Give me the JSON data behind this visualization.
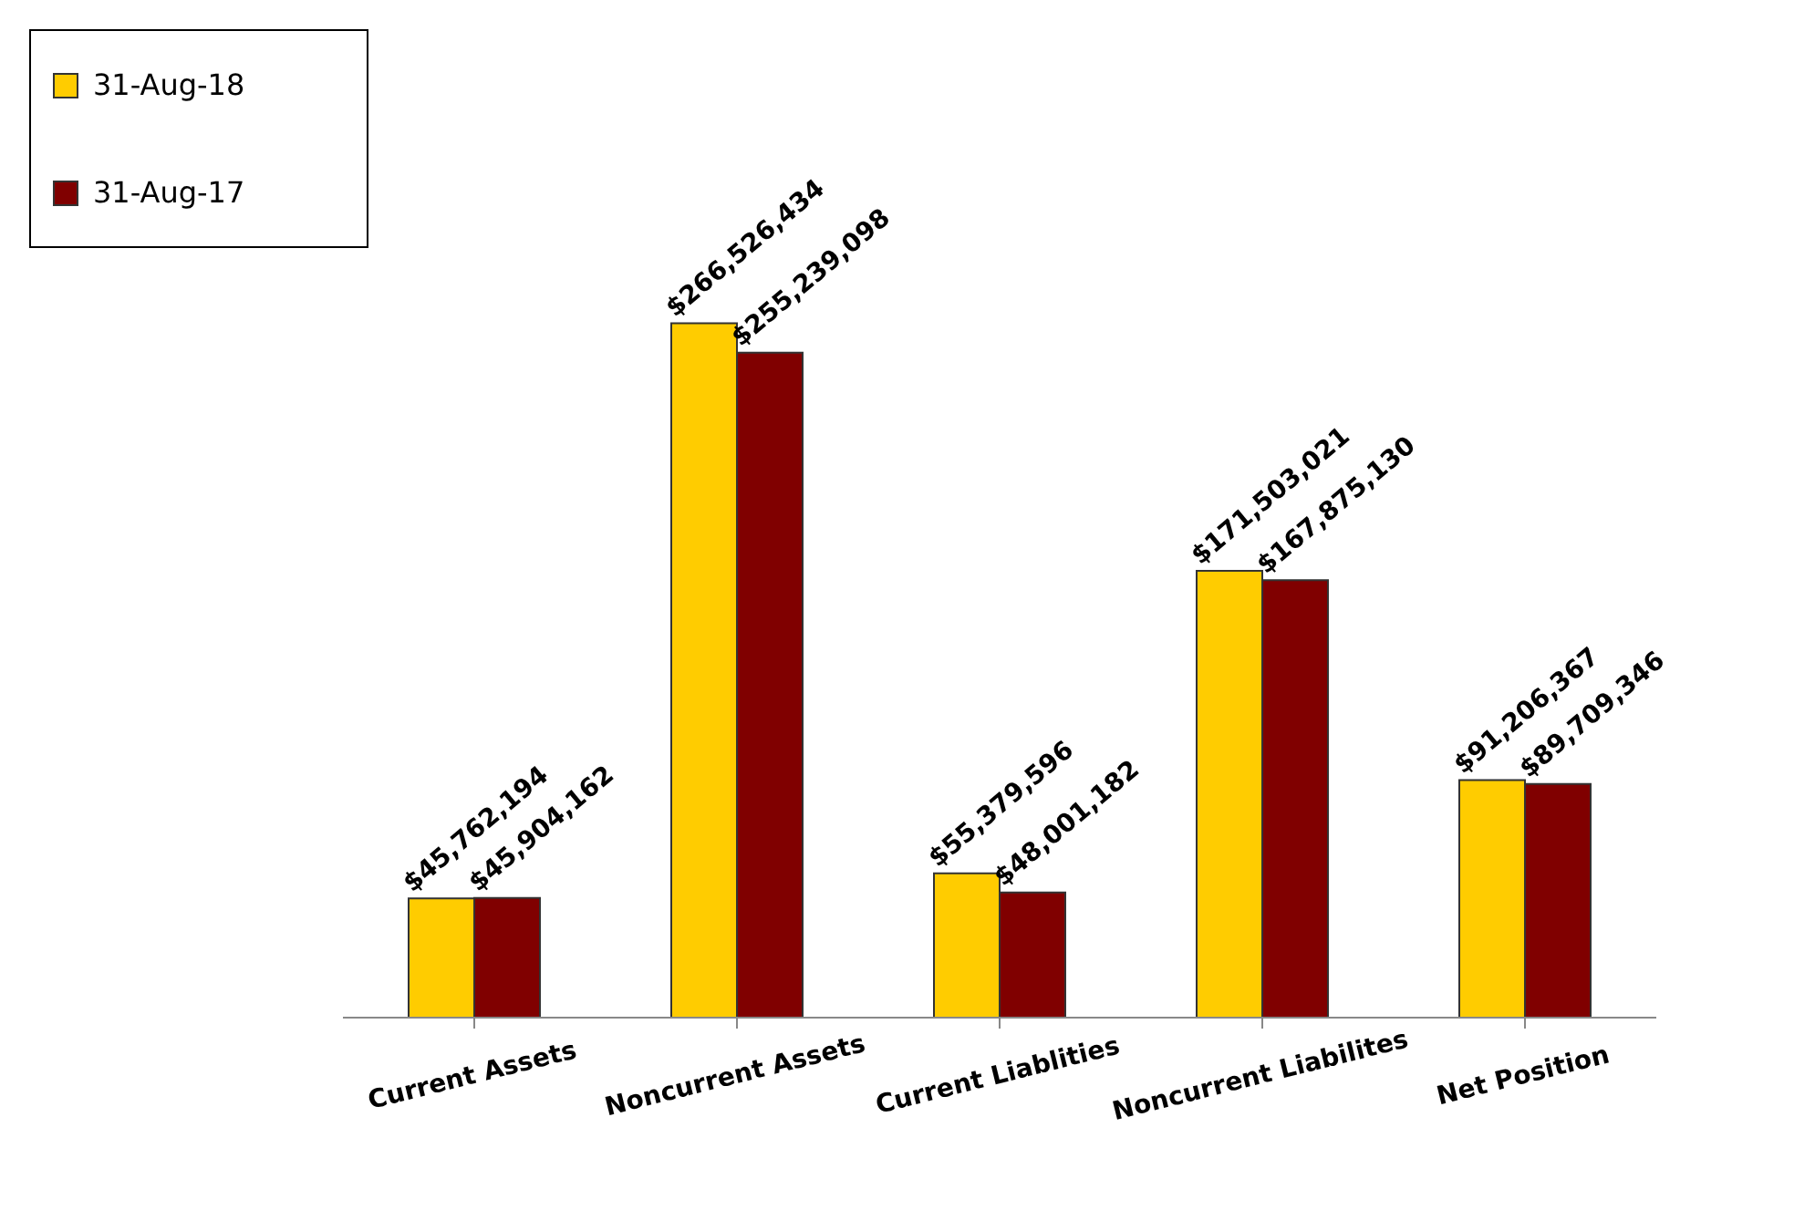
{
  "chart_data": {
    "type": "bar",
    "categories": [
      "Current Assets",
      "Noncurrent Assets",
      "Current Liablities",
      "Noncurrent Liabilites",
      "Net Position"
    ],
    "series": [
      {
        "name": "31-Aug-18",
        "color": "#ffcc00",
        "values": [
          45762194,
          266526434,
          55379596,
          171503021,
          91206367
        ],
        "value_labels": [
          "$45,762,194",
          "$266,526,434",
          "$55,379,596",
          "$171,503,021",
          "$91,206,367"
        ]
      },
      {
        "name": "31-Aug-17",
        "color": "#800000",
        "values": [
          45904162,
          255239098,
          48001182,
          167875130,
          89709346
        ],
        "value_labels": [
          "$45,904,162",
          "$255,239,098",
          "$48,001,182",
          "$167,875,130",
          "$89,709,346"
        ]
      }
    ],
    "legend": "top left",
    "grid": false
  }
}
